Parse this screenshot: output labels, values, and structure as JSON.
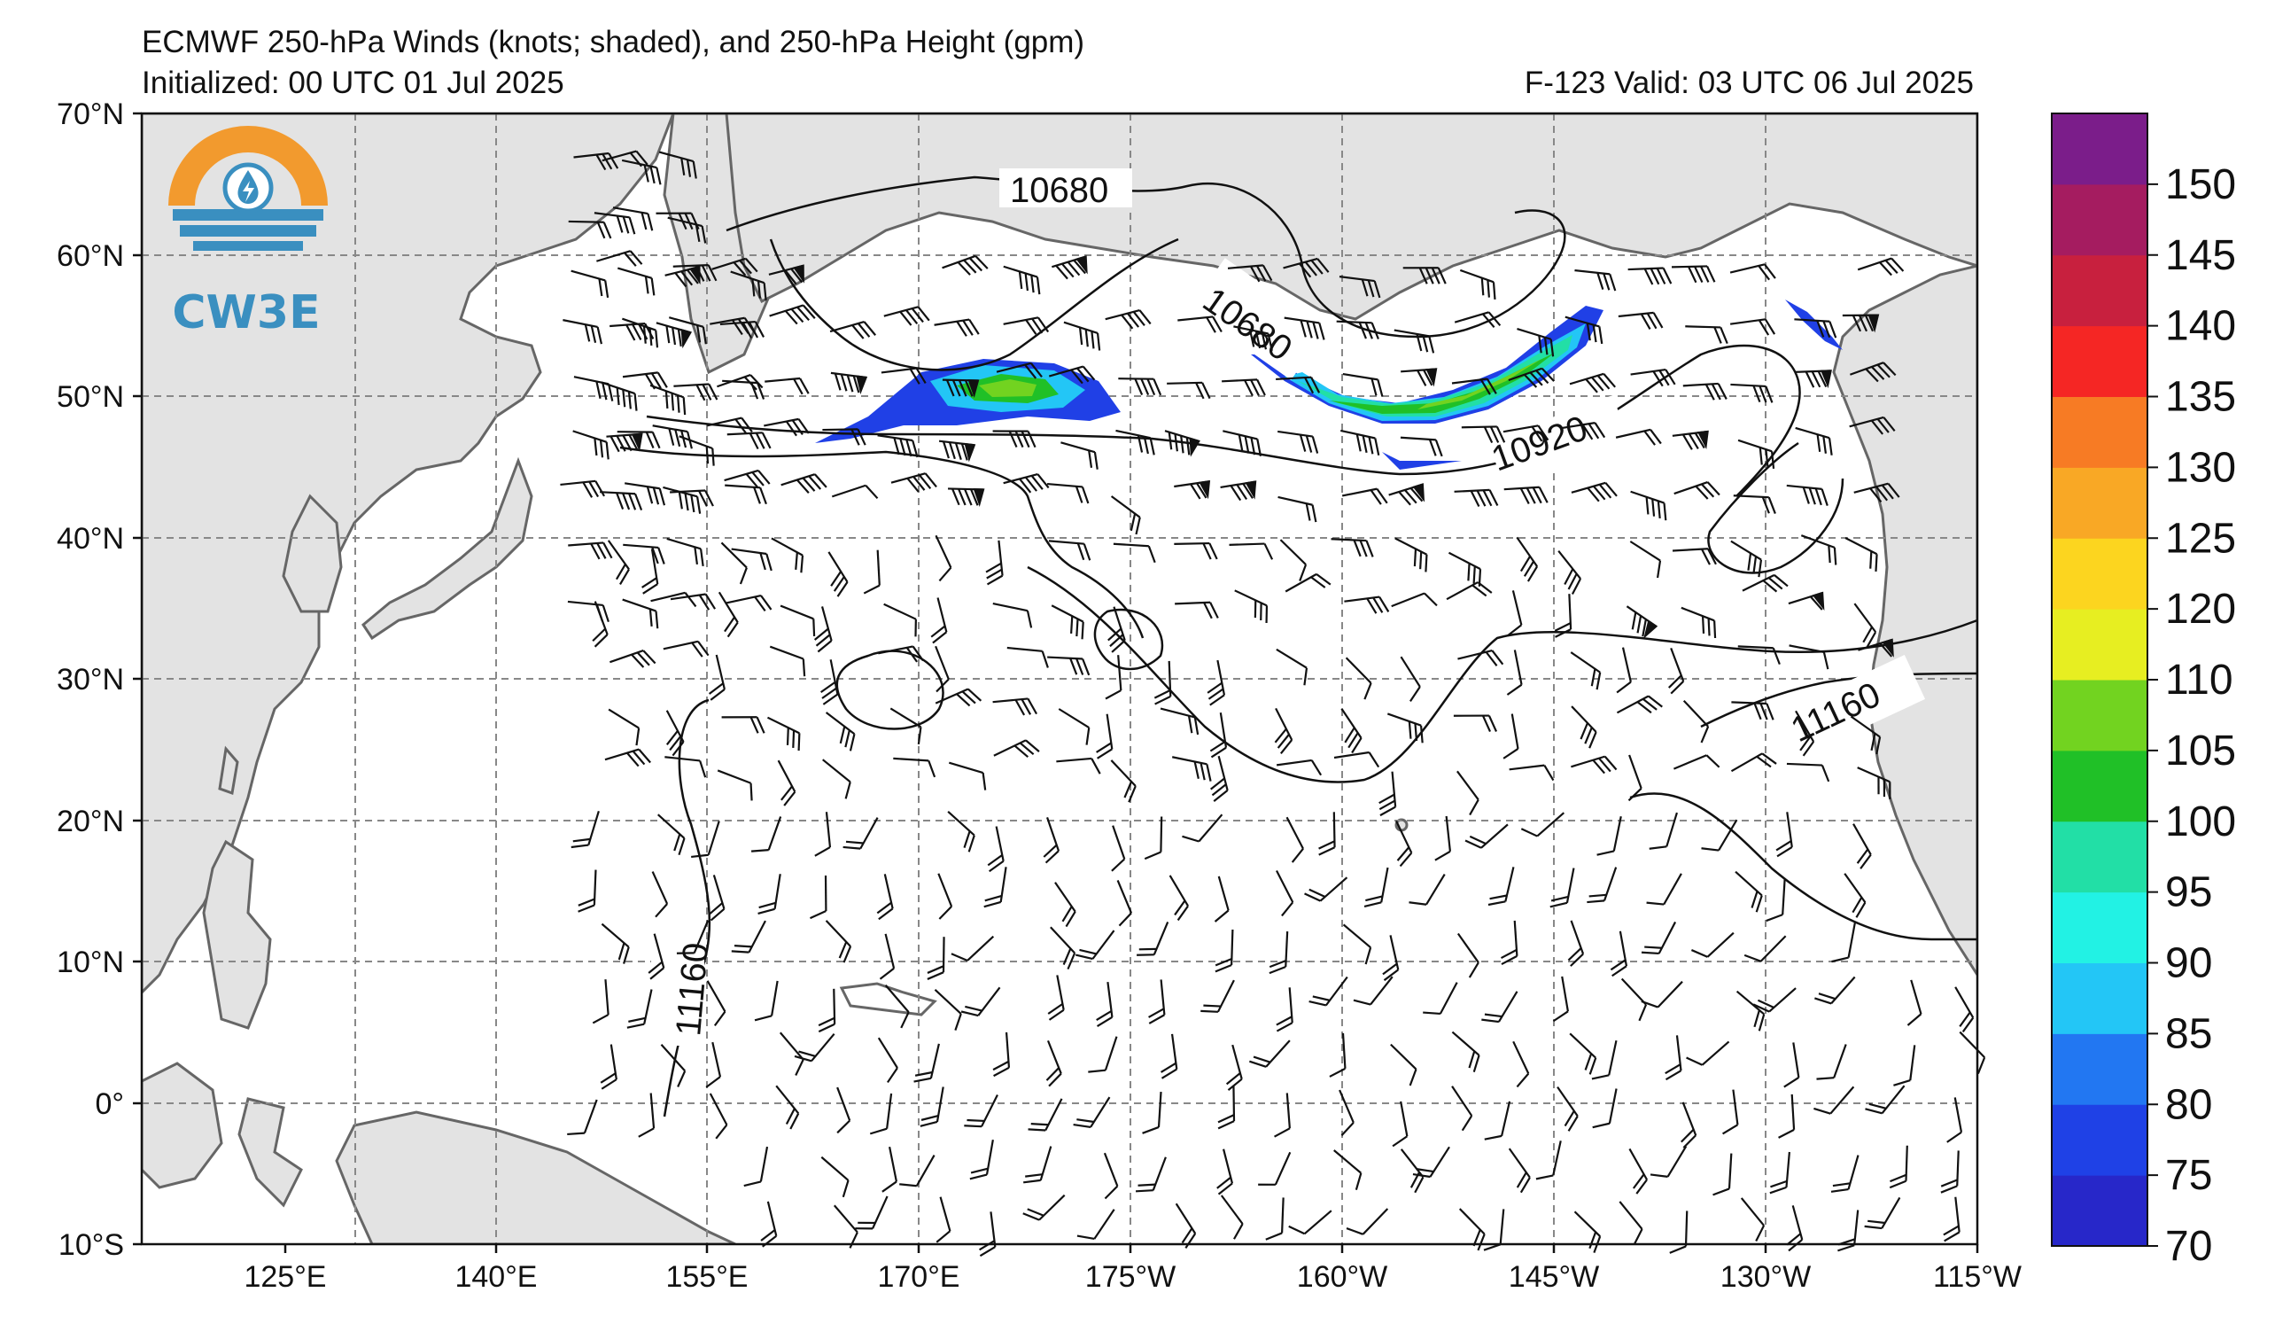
{
  "title": {
    "line1": "ECMWF 250-hPa Winds (knots; shaded), and 250-hPa Height (gpm)",
    "line2_left": "Initialized: 00 UTC 01 Jul 2025",
    "line2_right": "F-123  Valid: 03 UTC 06 Jul 2025"
  },
  "logo": {
    "text": "CW3E",
    "icon": "water-drop-lightning-icon"
  },
  "map": {
    "lon_ticks": [
      "125°E",
      "140°E",
      "155°E",
      "170°E",
      "175°W",
      "160°W",
      "145°W",
      "130°W",
      "115°W"
    ],
    "lat_ticks": [
      "70°N",
      "60°N",
      "50°N",
      "40°N",
      "30°N",
      "20°N",
      "10°N",
      "0°",
      "10°S"
    ],
    "contour_labels": [
      "10680",
      "10680",
      "10920",
      "11160",
      "11160"
    ],
    "land_color": "#e3e3e3",
    "coast_color": "#666666",
    "grid_style": "dashed gray"
  },
  "colorbar": {
    "tick_labels": [
      "70",
      "75",
      "80",
      "85",
      "90",
      "95",
      "100",
      "105",
      "110",
      "120",
      "125",
      "130",
      "135",
      "140",
      "145",
      "150"
    ],
    "colors": [
      "#2727c9",
      "#1f41e6",
      "#2277f2",
      "#23c6f6",
      "#22f2e4",
      "#22dfa6",
      "#20c027",
      "#72d320",
      "#e7ee21",
      "#fcd51f",
      "#f9a825",
      "#f77b24",
      "#f52624",
      "#c8203e",
      "#a51c60",
      "#7b1d8a"
    ]
  }
}
